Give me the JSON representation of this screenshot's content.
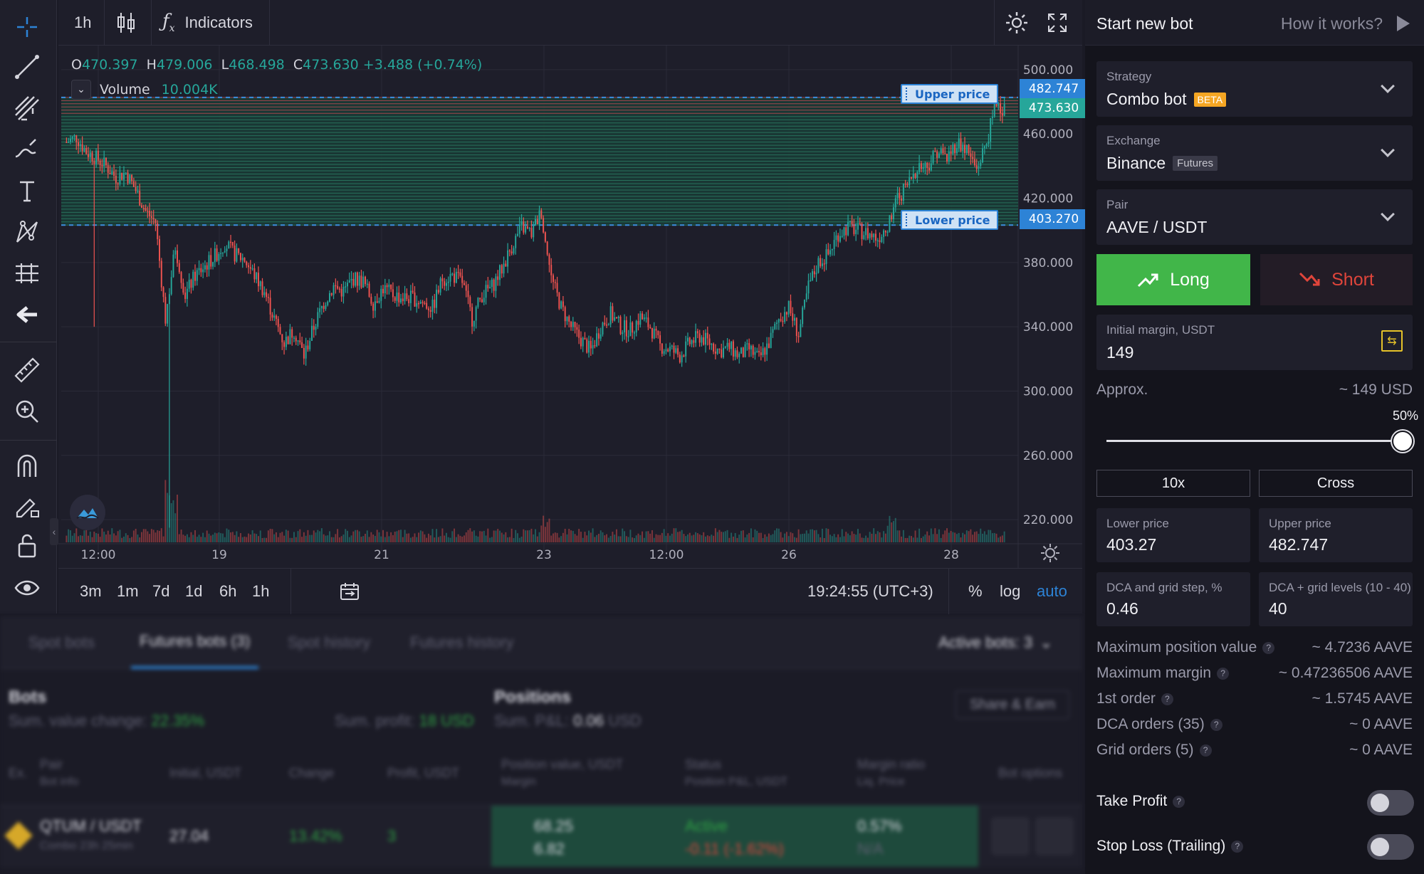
{
  "toolbar": {
    "tools": [
      "crosshair-icon",
      "trend-line-icon",
      "fib-icon",
      "brush-icon",
      "text-icon",
      "pattern-icon",
      "measure-lines-icon",
      "back-arrow-icon",
      "ruler-icon",
      "zoom-in-icon",
      "magnet-icon",
      "lock-draw-icon",
      "lock-icon",
      "eye-icon"
    ]
  },
  "chart": {
    "interval": "1h",
    "indicators_label": "Indicators",
    "ohlc": {
      "o_label": "O",
      "o": "470.397",
      "h_label": "H",
      "h": "479.006",
      "l_label": "L",
      "l": "468.498",
      "c_label": "C",
      "c": "473.630",
      "change": "+3.488 (+0.74%)"
    },
    "volume_label": "Volume",
    "volume_value": "10.004K",
    "upper_line_label": "Upper price",
    "lower_line_label": "Lower price",
    "upper_price_tag": "482.747",
    "last_price_tag": "473.630",
    "lower_price_tag": "403.270",
    "price_axis": [
      "500.000",
      "460.000",
      "420.000",
      "380.000",
      "340.000",
      "300.000",
      "260.000",
      "220.000"
    ],
    "time_axis": [
      "12:00",
      "19",
      "21",
      "23",
      "12:00",
      "26",
      "28"
    ],
    "timeframes": [
      "3m",
      "1m",
      "7d",
      "1d",
      "6h",
      "1h"
    ],
    "clock": "19:24:55 (UTC+3)",
    "percent_label": "%",
    "log_label": "log",
    "auto_label": "auto",
    "colors": {
      "up": "#26a69a",
      "down": "#ef5350",
      "grid_band": "#1f5a4a",
      "line": "#2d83d6"
    }
  },
  "chart_data": {
    "type": "candlestick",
    "symbol": "AAVE / USDT",
    "interval": "1h",
    "ylim": [
      205,
      515
    ],
    "x": [
      "12:00",
      "19",
      "21",
      "23",
      "12:00",
      "26",
      "28"
    ],
    "close_path": [
      455,
      458,
      449,
      445,
      440,
      433,
      436,
      425,
      412,
      405,
      345,
      390,
      360,
      372,
      378,
      384,
      392,
      385,
      382,
      372,
      362,
      345,
      330,
      338,
      322,
      340,
      355,
      365,
      362,
      370,
      368,
      355,
      364,
      360,
      358,
      358,
      355,
      352,
      370,
      372,
      368,
      345,
      360,
      365,
      376,
      390,
      402,
      398,
      412,
      370,
      352,
      340,
      332,
      325,
      340,
      348,
      340,
      338,
      346,
      340,
      328,
      326,
      322,
      330,
      334,
      330,
      325,
      327,
      322,
      326,
      320,
      330,
      345,
      352,
      335,
      365,
      380,
      385,
      398,
      402,
      400,
      398,
      395,
      404,
      420,
      428,
      440,
      440,
      450,
      445,
      455,
      450,
      438,
      455,
      480,
      473.63
    ],
    "upper_price": 482.747,
    "lower_price": 403.27,
    "last_price": 473.63
  },
  "bottom": {
    "tabs": [
      "Spot bots",
      "Futures bots (3)",
      "Spot history",
      "Futures history"
    ],
    "active_bots": "Active bots: 3",
    "bots_title": "Bots",
    "sum_value_change_label": "Sum. value change:",
    "sum_value_change": "22.35%",
    "sum_profit_label": "Sum. profit:",
    "sum_profit": "18 USD",
    "positions_title": "Positions",
    "sum_pnl_label": "Sum. P&L:",
    "sum_pnl": "0.06",
    "sum_pnl_unit": "USD",
    "share_label": "Share & Earn",
    "columns": [
      "Ex.",
      "Pair",
      "Bot info",
      "Initial, USDT",
      "Change",
      "Profit, USDT",
      "Position value, USDT",
      "Margin",
      "Status",
      "Position P&L, USDT",
      "Margin ratio",
      "Liq. Price",
      "Bot options"
    ],
    "row": {
      "pair": "QTUM / USDT",
      "bot_info": "Combo",
      "age": "23h 25min",
      "initial": "27.04",
      "change": "13.42%",
      "profit": "3",
      "position_value": "68.25",
      "margin": "6.82",
      "status": "Active",
      "pnl": "-0.11 (-1.62%)",
      "margin_ratio": "0.57%",
      "liq_price": "N/A"
    }
  },
  "side": {
    "title": "Start new bot",
    "help": "How it works?",
    "strategy_label": "Strategy",
    "strategy_value": "Combo bot",
    "strategy_badge": "BETA",
    "exchange_label": "Exchange",
    "exchange_value": "Binance",
    "exchange_badge": "Futures",
    "pair_label": "Pair",
    "pair_value": "AAVE / USDT",
    "long_label": "Long",
    "short_label": "Short",
    "margin_label": "Initial margin, USDT",
    "margin_value": "149",
    "approx_label": "Approx.",
    "approx_value": "~ 149 USD",
    "slider_pct_label": "50%",
    "slider_fraction": 1.0,
    "leverage": "10x",
    "margin_mode": "Cross",
    "lower_price_label": "Lower price",
    "lower_price_value": "403.27",
    "upper_price_label": "Upper price",
    "upper_price_value": "482.747",
    "step_label": "DCA and grid step, %",
    "step_value": "0.46",
    "levels_label": "DCA + grid levels (10 - 40)",
    "levels_value": "40",
    "stats": [
      {
        "label": "Maximum position value",
        "value": "~ 4.7236 AAVE"
      },
      {
        "label": "Maximum margin",
        "value": "~ 0.47236506 AAVE"
      },
      {
        "label": "1st order",
        "value": "~ 1.5745 AAVE"
      },
      {
        "label": "DCA orders (35)",
        "value": "~ 0 AAVE"
      },
      {
        "label": "Grid orders (5)",
        "value": "~ 0 AAVE"
      }
    ],
    "take_profit_label": "Take Profit",
    "stop_loss_label": "Stop Loss (Trailing)"
  }
}
